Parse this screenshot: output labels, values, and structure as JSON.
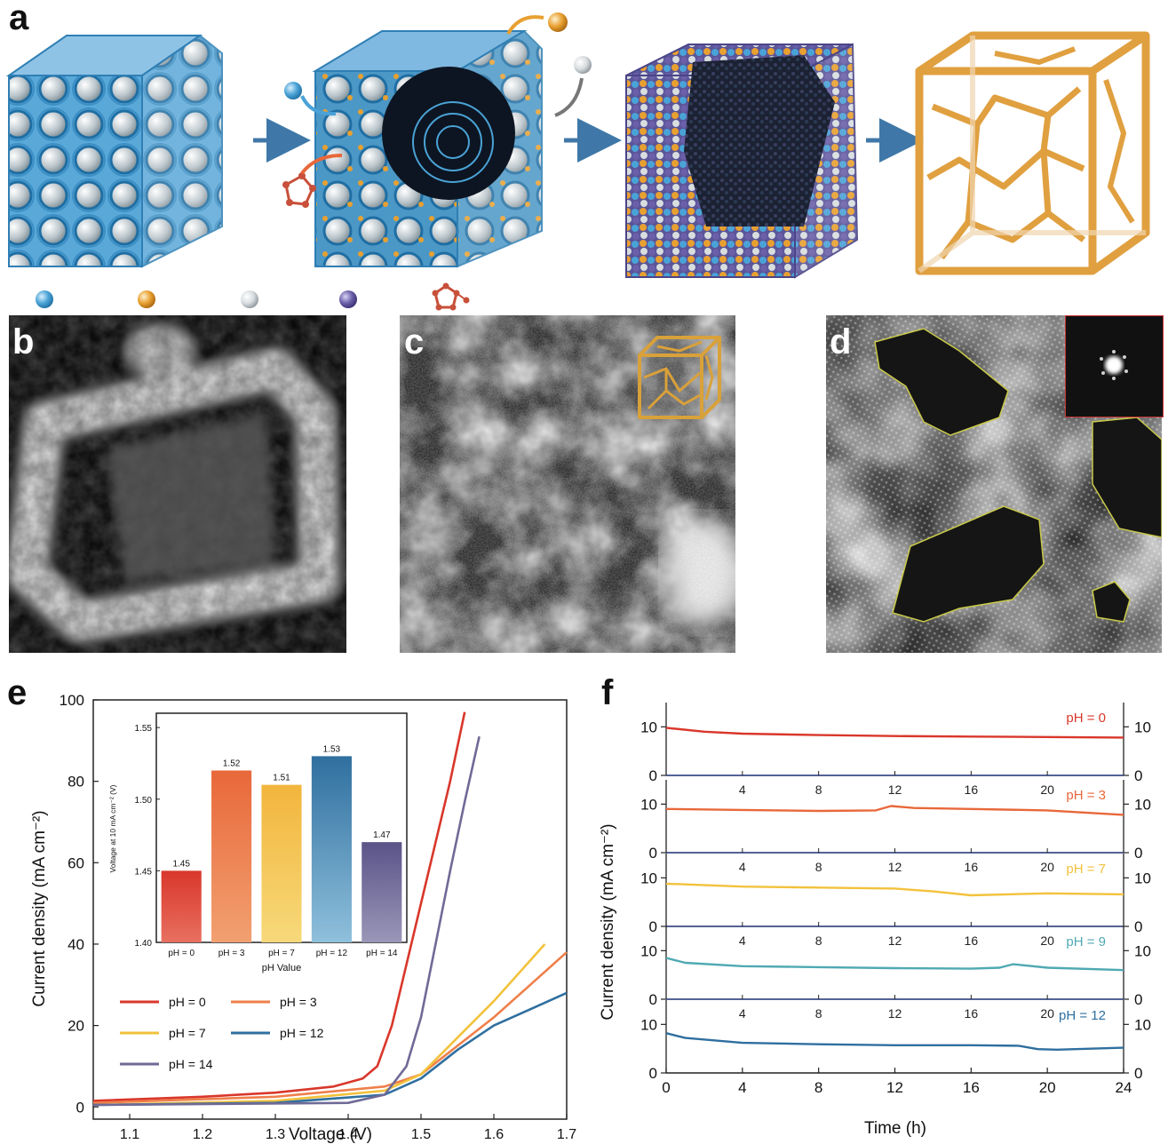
{
  "panels": {
    "a": {
      "letter": "a"
    },
    "b": {
      "letter": "b"
    },
    "c": {
      "letter": "c"
    },
    "d": {
      "letter": "d"
    },
    "e": {
      "letter": "e"
    },
    "f": {
      "letter": "f"
    }
  },
  "legend_a": {
    "atom_colors": [
      "#4aa3d6",
      "#e8a030",
      "#d8dde0",
      "#6a5fa8"
    ],
    "ligand_color": "#c8503a"
  },
  "chart_data": [
    {
      "id": "e",
      "type": "line",
      "xlabel": "Voltage (V)",
      "ylabel": "Current density (mA cm⁻²)",
      "xlim": [
        1.05,
        1.7
      ],
      "ylim": [
        -3,
        100
      ],
      "xticks": [
        "1.1",
        "1.2",
        "1.3",
        "1.4",
        "1.5",
        "1.6",
        "1.7"
      ],
      "yticks": [
        "0",
        "20",
        "40",
        "60",
        "80",
        "100"
      ],
      "legend_position": "bottom-left",
      "series": [
        {
          "name": "pH = 0",
          "color": "#d9372b",
          "x": [
            1.05,
            1.2,
            1.3,
            1.38,
            1.42,
            1.44,
            1.46,
            1.48,
            1.5,
            1.52,
            1.54,
            1.56
          ],
          "y": [
            1.5,
            2.5,
            3.5,
            5.0,
            7.0,
            10.0,
            20.0,
            35.0,
            50.0,
            65.0,
            80.0,
            97.0
          ]
        },
        {
          "name": "pH = 3",
          "color": "#ef7f4a",
          "x": [
            1.05,
            1.3,
            1.45,
            1.5,
            1.55,
            1.6,
            1.65,
            1.7
          ],
          "y": [
            1.0,
            2.5,
            5.0,
            8.0,
            15.0,
            22.0,
            30.0,
            38.0
          ]
        },
        {
          "name": "pH = 7",
          "color": "#f2c23c",
          "x": [
            1.05,
            1.3,
            1.45,
            1.5,
            1.55,
            1.6,
            1.67
          ],
          "y": [
            0.5,
            1.5,
            4.0,
            8.0,
            17.0,
            26.0,
            40.0
          ]
        },
        {
          "name": "pH = 12",
          "color": "#2f6f9f",
          "x": [
            1.05,
            1.3,
            1.45,
            1.5,
            1.55,
            1.6,
            1.65,
            1.7
          ],
          "y": [
            0.5,
            1.0,
            3.0,
            7.0,
            14.0,
            20.0,
            24.0,
            28.0
          ]
        },
        {
          "name": "pH = 14",
          "color": "#6f6a96",
          "x": [
            1.05,
            1.4,
            1.45,
            1.48,
            1.5,
            1.52,
            1.54,
            1.56,
            1.58
          ],
          "y": [
            0.5,
            1.0,
            3.0,
            10.0,
            22.0,
            40.0,
            58.0,
            75.0,
            91.0
          ]
        }
      ],
      "inset": {
        "type": "bar",
        "xlabel": "pH Value",
        "ylabel": "Voltage at 10 mA cm⁻² (V)",
        "ylim": [
          1.4,
          1.56
        ],
        "yticks": [
          "1.40",
          "1.45",
          "1.50",
          "1.55"
        ],
        "categories": [
          "pH = 0",
          "pH = 3",
          "pH = 7",
          "pH = 12",
          "pH = 14"
        ],
        "values": [
          1.45,
          1.52,
          1.51,
          1.53,
          1.47
        ],
        "value_labels": [
          "1.45",
          "1.52",
          "1.51",
          "1.53",
          "1.47"
        ],
        "colors": [
          "#d9372b",
          "#ef7f4a",
          "#f2c23c",
          "#3a7fb0",
          "#6f6a96"
        ]
      }
    },
    {
      "id": "f",
      "type": "line",
      "xlabel": "Time (h)",
      "ylabel": "Current density (mA cm⁻²)",
      "xlim": [
        0,
        24
      ],
      "xticks": [
        "0",
        "4",
        "8",
        "12",
        "16",
        "20",
        "24"
      ],
      "subplot_xticks": [
        "4",
        "8",
        "12",
        "16",
        "20"
      ],
      "subplot_yticks": [
        "0",
        "10"
      ],
      "subplot_ylim": [
        0,
        15
      ],
      "series": [
        {
          "name": "pH = 0",
          "color": "#d9372b",
          "x": [
            0,
            2,
            4,
            8,
            12,
            16,
            20,
            24
          ],
          "y": [
            9.8,
            9.0,
            8.6,
            8.3,
            8.1,
            8.0,
            7.9,
            7.8
          ]
        },
        {
          "name": "pH = 3",
          "color": "#e8683a",
          "x": [
            0,
            4,
            8,
            11,
            11.8,
            13,
            16,
            20,
            24
          ],
          "y": [
            9.0,
            8.8,
            8.6,
            8.7,
            9.6,
            9.2,
            9.0,
            8.7,
            7.8
          ]
        },
        {
          "name": "pH = 7",
          "color": "#f2c23c",
          "x": [
            0,
            4,
            8,
            12,
            14,
            16,
            20,
            24
          ],
          "y": [
            8.8,
            8.2,
            8.0,
            7.8,
            7.2,
            6.4,
            6.8,
            6.6
          ]
        },
        {
          "name": "pH = 9",
          "color": "#4fa9b3",
          "x": [
            0,
            1,
            4,
            8,
            12,
            16,
            17.5,
            18.2,
            20,
            24
          ],
          "y": [
            8.5,
            7.5,
            6.8,
            6.6,
            6.4,
            6.3,
            6.5,
            7.2,
            6.5,
            6.0
          ]
        },
        {
          "name": "pH = 12",
          "color": "#2f6f9f",
          "x": [
            0,
            1,
            4,
            8,
            12,
            16,
            18.5,
            19.5,
            20.5,
            24
          ],
          "y": [
            8.2,
            7.2,
            6.2,
            5.9,
            5.7,
            5.7,
            5.6,
            4.9,
            4.8,
            5.2
          ]
        }
      ]
    }
  ]
}
